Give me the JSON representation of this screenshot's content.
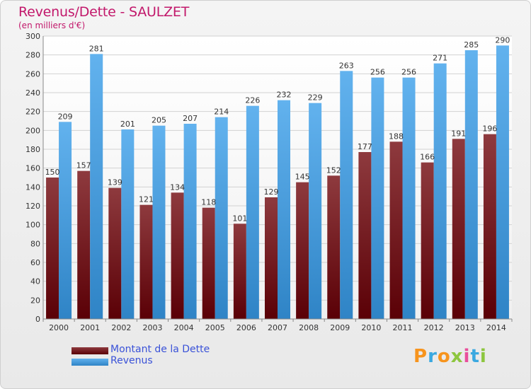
{
  "header": {
    "title": "Revenus/Dette - SAULZET",
    "subtitle": "(en milliers d'€)"
  },
  "legend": {
    "items": [
      {
        "label": "Montant de la Dette",
        "color": "#7a1f24"
      },
      {
        "label": "Revenus",
        "color": "#4a9ee0"
      }
    ]
  },
  "logo": {
    "text": "Proxiti",
    "colors": [
      "#f7941d",
      "#3aa8e0",
      "#f7941d",
      "#8dc63f",
      "#e94e9b",
      "#3aa8e0",
      "#8dc63f"
    ]
  },
  "chart_data": {
    "type": "bar",
    "title": "Revenus/Dette - SAULZET",
    "subtitle": "(en milliers d'€)",
    "categories": [
      "2000",
      "2001",
      "2002",
      "2003",
      "2004",
      "2005",
      "2006",
      "2007",
      "2008",
      "2009",
      "2010",
      "2011",
      "2012",
      "2013",
      "2014"
    ],
    "series": [
      {
        "name": "Montant de la Dette",
        "color": "#7a1f24",
        "values": [
          150,
          157,
          139,
          121,
          134,
          118,
          101,
          129,
          145,
          152,
          177,
          188,
          166,
          191,
          196
        ]
      },
      {
        "name": "Revenus",
        "color": "#4a9ee0",
        "values": [
          209,
          281,
          201,
          205,
          207,
          214,
          226,
          232,
          229,
          263,
          256,
          256,
          271,
          285,
          290
        ]
      }
    ],
    "ylim": [
      0,
      300
    ],
    "yticks": [
      0,
      20,
      40,
      60,
      80,
      100,
      120,
      140,
      160,
      180,
      200,
      220,
      240,
      260,
      280,
      300
    ],
    "grid": true,
    "legend_position": "bottom-left"
  }
}
